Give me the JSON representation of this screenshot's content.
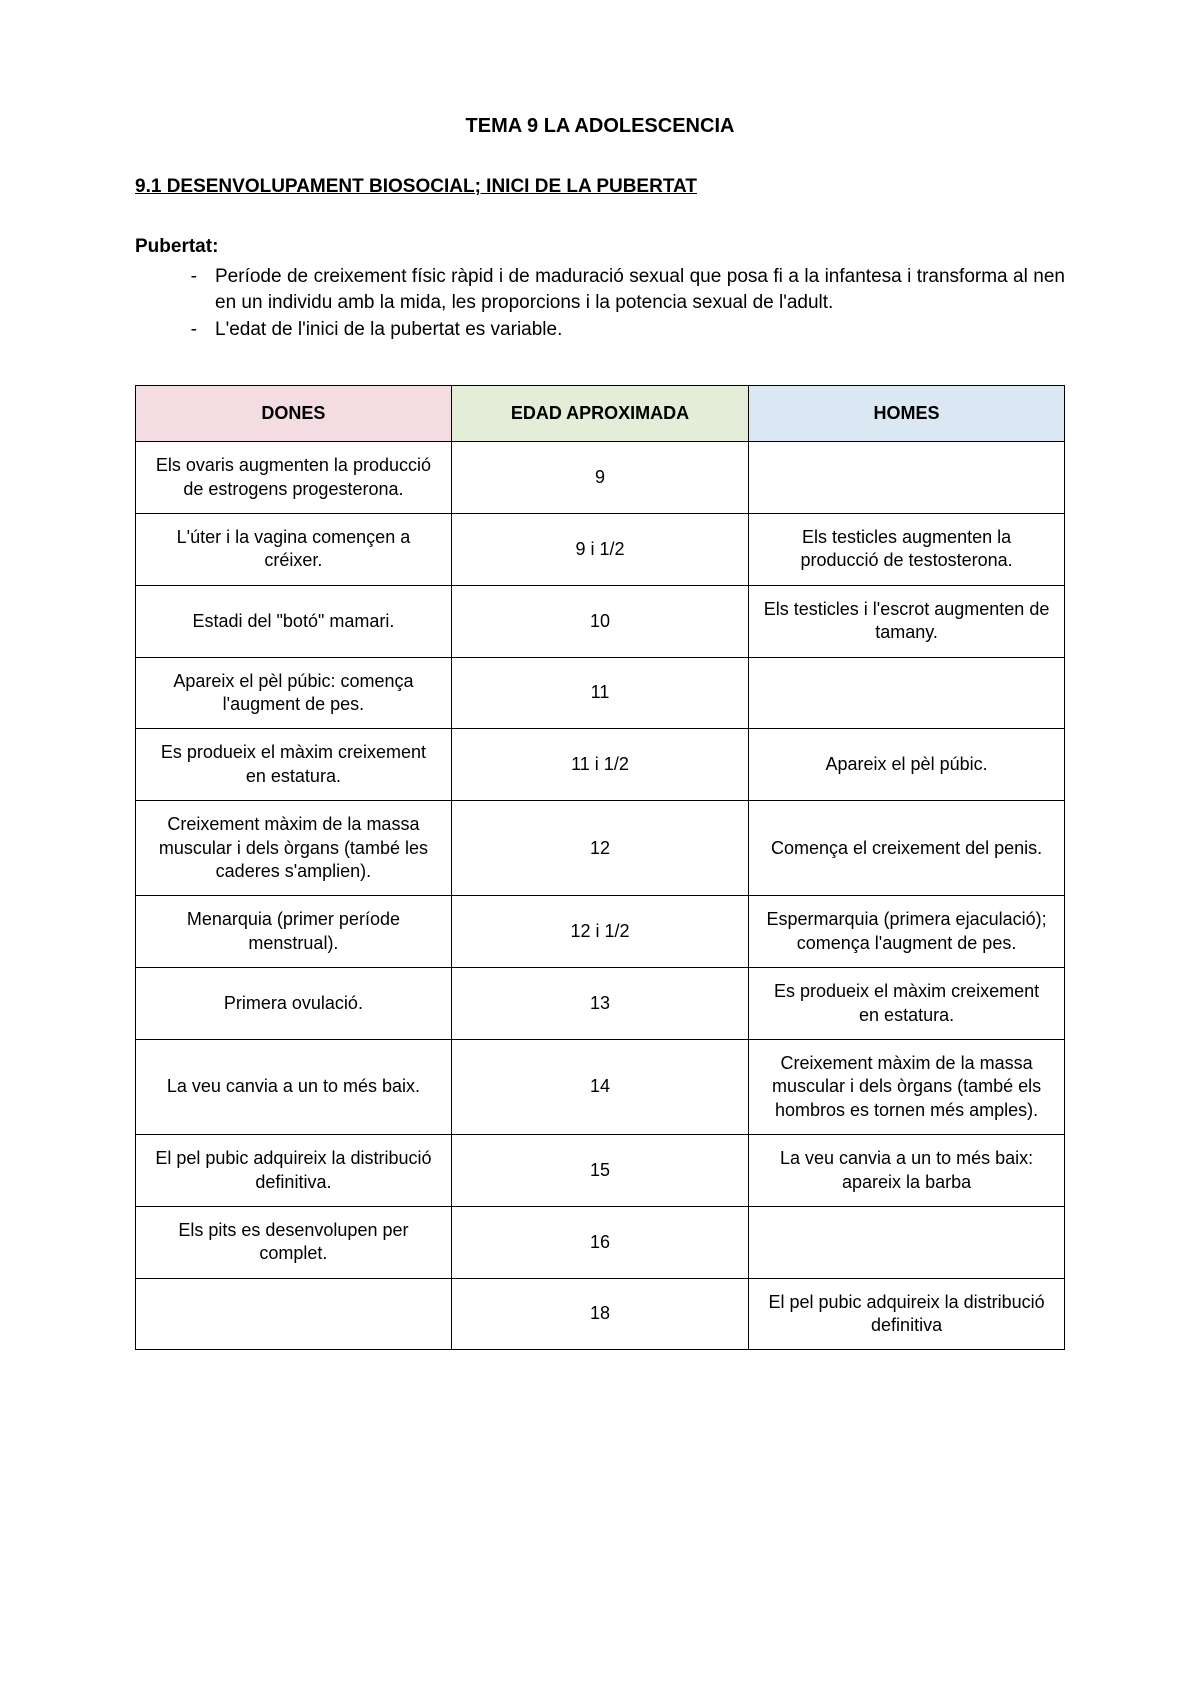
{
  "title": "TEMA 9 LA ADOLESCENCIA",
  "section": "9.1 DESENVOLUPAMENT BIOSOCIAL; INICI DE LA PUBERTAT",
  "subheading": "Pubertat:",
  "bullets": [
    "Període de creixement físic ràpid i de maduració sexual que posa fi a la infantesa i transforma al nen en un individu amb la mida, les proporcions i la potencia sexual de l'adult.",
    "L'edat de l'inici de la pubertat es variable."
  ],
  "table": {
    "border_color": "#000000",
    "columns": [
      {
        "label": "DONES",
        "bg": "#f3dde3",
        "width": "34%"
      },
      {
        "label": "EDAD APROXIMADA",
        "bg": "#e3edd8",
        "width": "32%"
      },
      {
        "label": "HOMES",
        "bg": "#dbe7f3",
        "width": "34%"
      }
    ],
    "rows": [
      {
        "dones": "Els ovaris augmenten la producció de estrogens progesterona.",
        "edad": "9",
        "homes": ""
      },
      {
        "dones": "L'úter i la vagina començen a créixer.",
        "edad": "9 i 1/2",
        "homes": "Els testicles augmenten la producció de testosterona."
      },
      {
        "dones": "Estadi del \"botó\" mamari.",
        "edad": "10",
        "homes": "Els testicles i l'escrot augmenten de tamany."
      },
      {
        "dones": "Apareix el pèl púbic: comença l'augment de pes.",
        "edad": "11",
        "homes": ""
      },
      {
        "dones": "Es produeix el màxim creixement en estatura.",
        "edad": "11 i 1/2",
        "homes": "Apareix el pèl púbic."
      },
      {
        "dones": "Creixement màxim de la massa muscular i dels òrgans (també les caderes s'amplien).",
        "edad": "12",
        "homes": "Comença el creixement del penis."
      },
      {
        "dones": "Menarquia (primer període menstrual).",
        "edad": "12 i 1/2",
        "homes": "Espermarquia (primera ejaculació); comença l'augment de pes."
      },
      {
        "dones": "Primera ovulació.",
        "edad": "13",
        "homes": "Es produeix el màxim creixement en estatura."
      },
      {
        "dones": "La veu canvia a un to més baix.",
        "edad": "14",
        "homes": "Creixement màxim de la massa muscular i dels òrgans (també els hombros es tornen més amples)."
      },
      {
        "dones": "El pel pubic adquireix la distribució definitiva.",
        "edad": "15",
        "homes": "La veu canvia a un to més baix: apareix la barba"
      },
      {
        "dones": "Els pits es desenvolupen per complet.",
        "edad": "16",
        "homes": ""
      },
      {
        "dones": "",
        "edad": "18",
        "homes": "El pel pubic adquireix la distribució definitiva"
      }
    ]
  }
}
